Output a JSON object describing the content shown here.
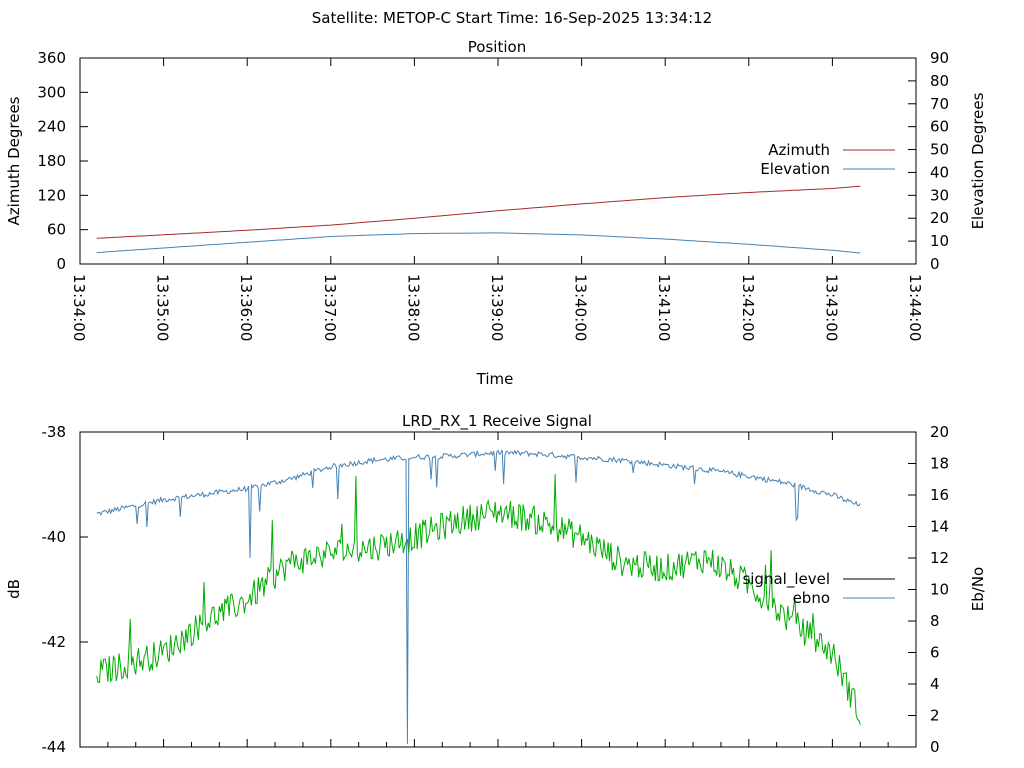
{
  "header": {
    "title": "Satellite: METOP-C    Start Time: 16-Sep-2025 13:34:12"
  },
  "chart_data": [
    {
      "type": "line",
      "title": "Position",
      "xlabel": "Time",
      "ylabel": "Azimuth Degrees",
      "y2label": "Elevation Degrees",
      "xlim": [
        "13:34:00",
        "13:44:00"
      ],
      "xticks": [
        "13:34:00",
        "13:35:00",
        "13:36:00",
        "13:37:00",
        "13:38:00",
        "13:39:00",
        "13:40:00",
        "13:41:00",
        "13:42:00",
        "13:43:00",
        "13:44:00"
      ],
      "ylim": [
        0,
        360
      ],
      "yticks": [
        0,
        60,
        120,
        180,
        240,
        300,
        360
      ],
      "y2lim": [
        0,
        90
      ],
      "y2ticks": [
        0,
        10,
        20,
        30,
        40,
        50,
        60,
        70,
        80,
        90
      ],
      "grid": false,
      "legend_position": "right",
      "series": [
        {
          "name": "Azimuth",
          "axis": "left",
          "color": "#a52a2a",
          "x": [
            "13:34:12",
            "13:35:00",
            "13:36:00",
            "13:37:00",
            "13:38:00",
            "13:39:00",
            "13:40:00",
            "13:41:00",
            "13:42:00",
            "13:43:00",
            "13:43:20"
          ],
          "values": [
            45,
            51,
            59,
            68,
            80,
            93,
            105,
            116,
            125,
            132,
            136
          ]
        },
        {
          "name": "Elevation",
          "axis": "right",
          "color": "#4682b4",
          "x": [
            "13:34:12",
            "13:35:00",
            "13:36:00",
            "13:37:00",
            "13:38:00",
            "13:39:00",
            "13:40:00",
            "13:41:00",
            "13:42:00",
            "13:43:00",
            "13:43:20"
          ],
          "values": [
            5,
            7,
            9.5,
            12,
            13.3,
            13.6,
            12.7,
            10.9,
            8.6,
            6,
            4.8
          ]
        }
      ]
    },
    {
      "type": "line",
      "title": "LRD_RX_1 Receive Signal",
      "ylabel": "dB",
      "y2label": "Eb/No",
      "xlim": [
        "13:34:00",
        "13:44:00"
      ],
      "ylim": [
        -44,
        -38
      ],
      "yticks": [
        -44,
        -42,
        -40,
        -38
      ],
      "y2lim": [
        0,
        20
      ],
      "y2ticks": [
        0,
        2,
        4,
        6,
        8,
        10,
        12,
        14,
        16,
        18,
        20
      ],
      "grid": false,
      "legend_position": "right",
      "series": [
        {
          "name": "signal_level",
          "axis": "left",
          "color": "#000000",
          "x": [],
          "values": []
        },
        {
          "name": "ebno",
          "axis": "right",
          "color": "#4682b4",
          "x": [
            "13:34:12",
            "13:35:00",
            "13:36:00",
            "13:36:30",
            "13:37:00",
            "13:37:30",
            "13:38:00",
            "13:38:30",
            "13:39:00",
            "13:39:30",
            "13:40:00",
            "13:40:30",
            "13:41:00",
            "13:41:30",
            "13:42:00",
            "13:42:30",
            "13:43:00",
            "13:43:20"
          ],
          "values": [
            14.8,
            15.7,
            16.4,
            17.0,
            17.8,
            18.2,
            18.4,
            18.5,
            18.7,
            18.6,
            18.4,
            18.2,
            17.9,
            17.6,
            17.2,
            16.7,
            16.0,
            15.3
          ]
        },
        {
          "name": "",
          "axis": "left",
          "color": "#00aa00",
          "x": [
            "13:34:12",
            "13:35:00",
            "13:35:30",
            "13:36:00",
            "13:36:30",
            "13:37:00",
            "13:37:30",
            "13:38:00",
            "13:38:30",
            "13:39:00",
            "13:39:30",
            "13:40:00",
            "13:40:30",
            "13:41:00",
            "13:41:30",
            "13:42:00",
            "13:42:30",
            "13:43:00",
            "13:43:20"
          ],
          "values": [
            -42.6,
            -42.2,
            -41.6,
            -41.2,
            -40.5,
            -40.3,
            -40.2,
            -40.0,
            -39.7,
            -39.5,
            -39.7,
            -40.0,
            -40.5,
            -40.6,
            -40.4,
            -40.9,
            -41.6,
            -42.2,
            -43.4
          ]
        }
      ]
    }
  ]
}
